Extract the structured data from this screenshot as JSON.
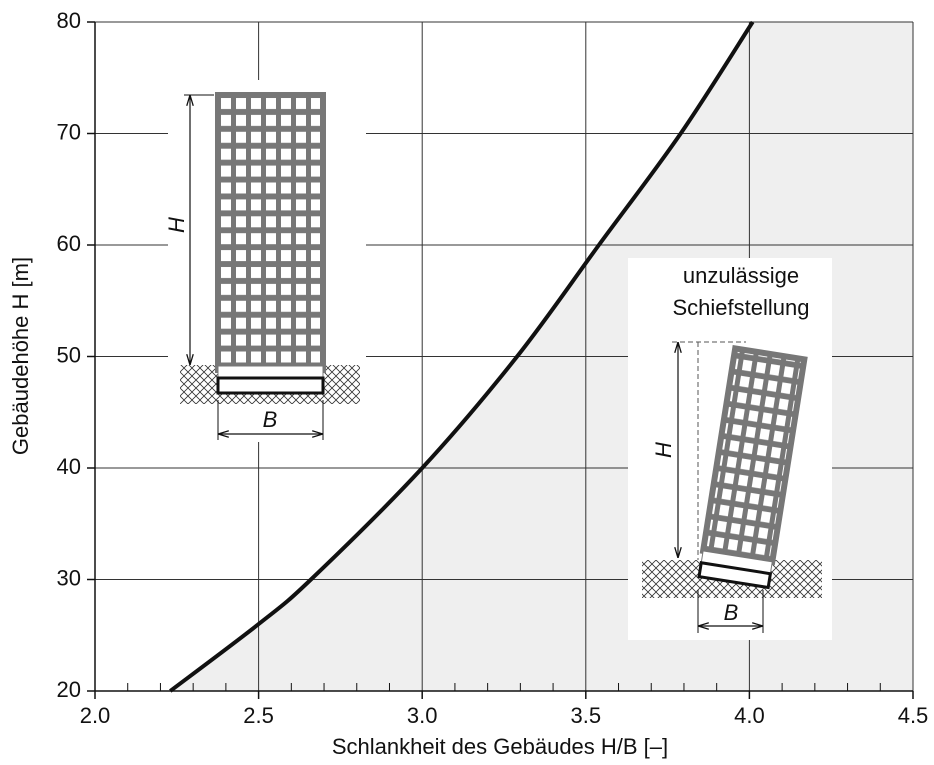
{
  "chart_data": {
    "type": "line",
    "x_label": "Schlankheit des Gebäudes H/B [–]",
    "y_label": "Gebäudehöhe H [m]",
    "x": [
      2.23,
      2.5,
      2.66,
      3.0,
      3.29,
      3.54,
      3.79,
      4.01
    ],
    "series": [
      {
        "color": "#111111",
        "values": [
          20,
          26,
          30,
          40,
          50,
          60,
          70,
          80
        ]
      }
    ],
    "fill_color": "#efefef",
    "xlim": [
      2.0,
      4.5
    ],
    "xticks": [
      {
        "value": 2,
        "label": "2.0"
      },
      2.5,
      {
        "value": 3,
        "label": "3.0"
      },
      3.5,
      {
        "value": 4,
        "label": "4.0"
      },
      4.5
    ],
    "xticks_minor": [
      2.1,
      2.2,
      2.3,
      2.4,
      2.6,
      2.7,
      2.8,
      2.9,
      3.1,
      3.2,
      3.3,
      3.4,
      3.6,
      3.7,
      3.8,
      3.9,
      4.1,
      4.2,
      4.3,
      4.4
    ],
    "ylim": [
      20,
      80
    ],
    "yticks": [
      20,
      30,
      40,
      50,
      60,
      70,
      80
    ],
    "grid": true,
    "annotations": {
      "warning_line1": "unzulässige",
      "warning_line2": "Schiefstellung",
      "height_left": "H",
      "width_left": "B",
      "height_right": "H",
      "width_right": "B"
    }
  }
}
